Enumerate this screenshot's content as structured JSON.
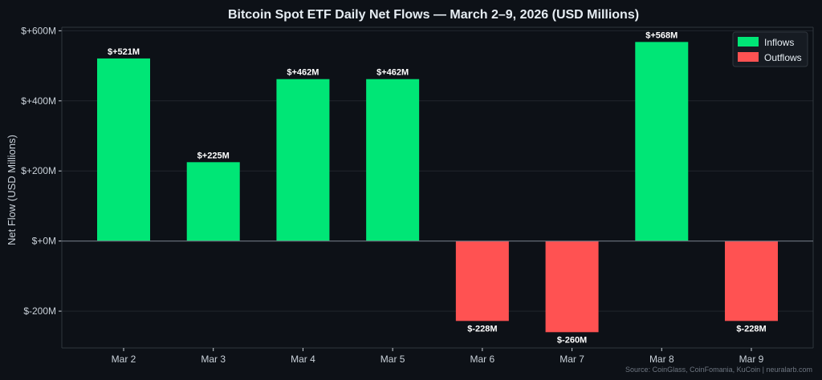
{
  "chart_data": {
    "type": "bar",
    "title": "Bitcoin Spot ETF Daily Net Flows — March 2–9, 2026 (USD Millions)",
    "xlabel": "",
    "ylabel": "Net Flow (USD Millions)",
    "categories": [
      "Mar 2",
      "Mar 3",
      "Mar 4",
      "Mar 5",
      "Mar 6",
      "Mar 7",
      "Mar 8",
      "Mar 9"
    ],
    "values": [
      521,
      225,
      462,
      462,
      -228,
      -260,
      568,
      -228
    ],
    "value_labels": [
      "$+521M",
      "$+225M",
      "$+462M",
      "$+462M",
      "$-228M",
      "$-260M",
      "$+568M",
      "$-228M"
    ],
    "ylim": [
      -305,
      610
    ],
    "yticks": [
      -200,
      0,
      200,
      400,
      600
    ],
    "ytick_labels": [
      "$-200M",
      "$+0M",
      "$+200M",
      "$+400M",
      "$+600M"
    ],
    "grid": true,
    "legend": {
      "placement": "top-right",
      "entries": [
        {
          "label": "Inflows",
          "color": "#00e676"
        },
        {
          "label": "Outflows",
          "color": "#ff5252"
        }
      ]
    },
    "colors": {
      "background": "#0d1117",
      "inflow": "#00e676",
      "outflow": "#ff5252",
      "text": "#e6edf3",
      "axis_text": "#c9d1d9",
      "zero_line": "#6e7681",
      "grid": "#21262d",
      "spine": "#30363d"
    },
    "source": "Source: CoinGlass, CoinFomania, KuCoin | neuralarb.com"
  }
}
